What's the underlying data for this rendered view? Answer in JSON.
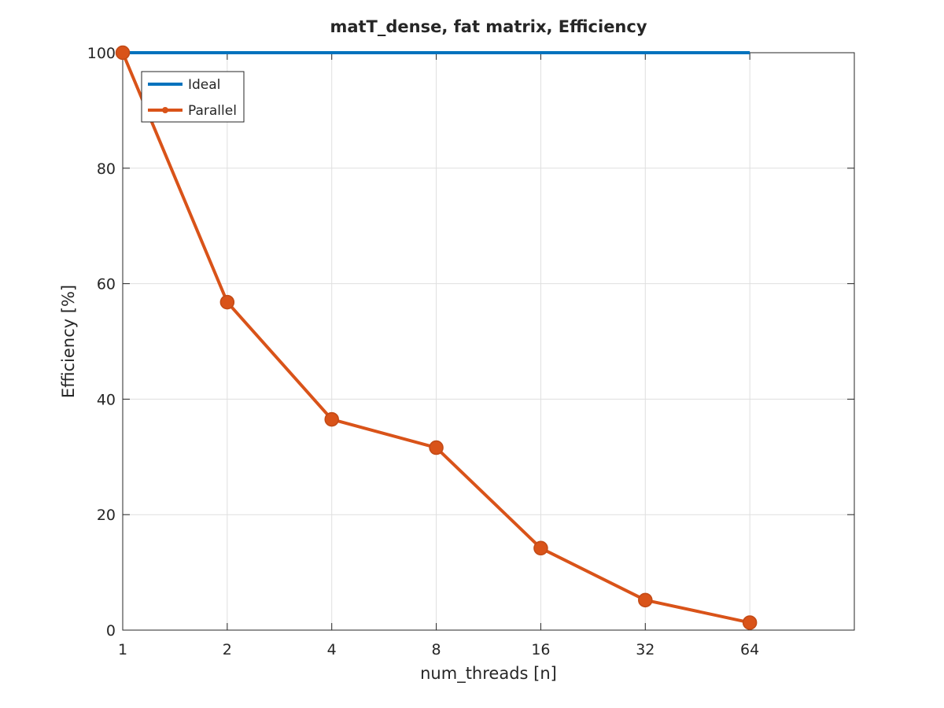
{
  "chart_data": {
    "type": "line",
    "title": "matT_dense, fat matrix, Efficiency",
    "xlabel": "num_threads [n]",
    "ylabel": "Efficiency [%]",
    "x_scale": "log2",
    "x_ticks": [
      1,
      2,
      4,
      8,
      16,
      32,
      64
    ],
    "x_tick_labels": [
      "1",
      "2",
      "4",
      "8",
      "16",
      "32",
      "64"
    ],
    "xlim": [
      1,
      128
    ],
    "y_ticks": [
      0,
      20,
      40,
      60,
      80,
      100
    ],
    "y_tick_labels": [
      "0",
      "20",
      "40",
      "60",
      "80",
      "100"
    ],
    "ylim": [
      0,
      100
    ],
    "grid": true,
    "legend_position": "top-left",
    "x": [
      1,
      2,
      4,
      8,
      16,
      32,
      64
    ],
    "series": [
      {
        "name": "Ideal",
        "color": "#0072BD",
        "marker": "none",
        "values": [
          100,
          100,
          100,
          100,
          100,
          100,
          100
        ]
      },
      {
        "name": "Parallel",
        "color": "#D95319",
        "marker": "circle",
        "values": [
          100,
          56.8,
          36.5,
          31.6,
          14.2,
          5.2,
          1.3
        ]
      }
    ]
  }
}
